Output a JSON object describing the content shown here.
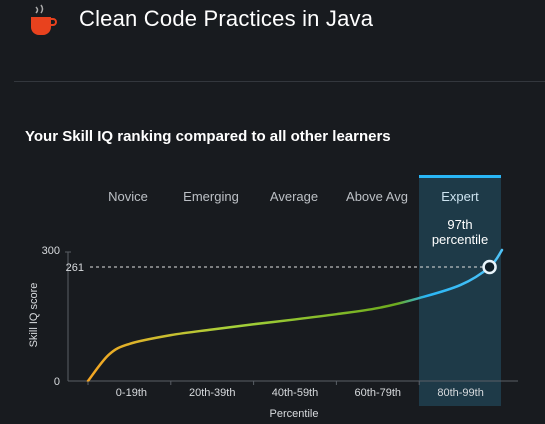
{
  "header": {
    "title": "Clean Code Practices in Java",
    "logo_icon": "coffee-cup-icon"
  },
  "heading": "Your Skill IQ ranking compared to all other learners",
  "chart_data": {
    "type": "area",
    "levels": [
      "Novice",
      "Emerging",
      "Average",
      "Above Avg",
      "Expert"
    ],
    "active_level": "Expert",
    "categories": [
      "0-19th",
      "20th-39th",
      "40th-59th",
      "60th-79th",
      "80th-99th"
    ],
    "xlabel": "Percentile",
    "ylabel": "Skill IQ score",
    "ylim": [
      0,
      300
    ],
    "yticks": [
      0,
      300
    ],
    "user_score": 261,
    "user_percentile": 97,
    "percentile_label_line1": "97th",
    "percentile_label_line2": "percentile",
    "curve": [
      {
        "p": 0,
        "s": 0
      },
      {
        "p": 5,
        "s": 60
      },
      {
        "p": 10,
        "s": 85
      },
      {
        "p": 20,
        "s": 105
      },
      {
        "p": 30,
        "s": 118
      },
      {
        "p": 40,
        "s": 130
      },
      {
        "p": 50,
        "s": 141
      },
      {
        "p": 60,
        "s": 153
      },
      {
        "p": 70,
        "s": 167
      },
      {
        "p": 80,
        "s": 190
      },
      {
        "p": 90,
        "s": 220
      },
      {
        "p": 97,
        "s": 261
      },
      {
        "p": 100,
        "s": 300
      }
    ],
    "colors": {
      "low": "#f5a623",
      "mid": "#8cc63f",
      "high": "#4fc3f7",
      "highlight_band": "#1e3a48",
      "highlight_top": "#29b6f6"
    }
  }
}
